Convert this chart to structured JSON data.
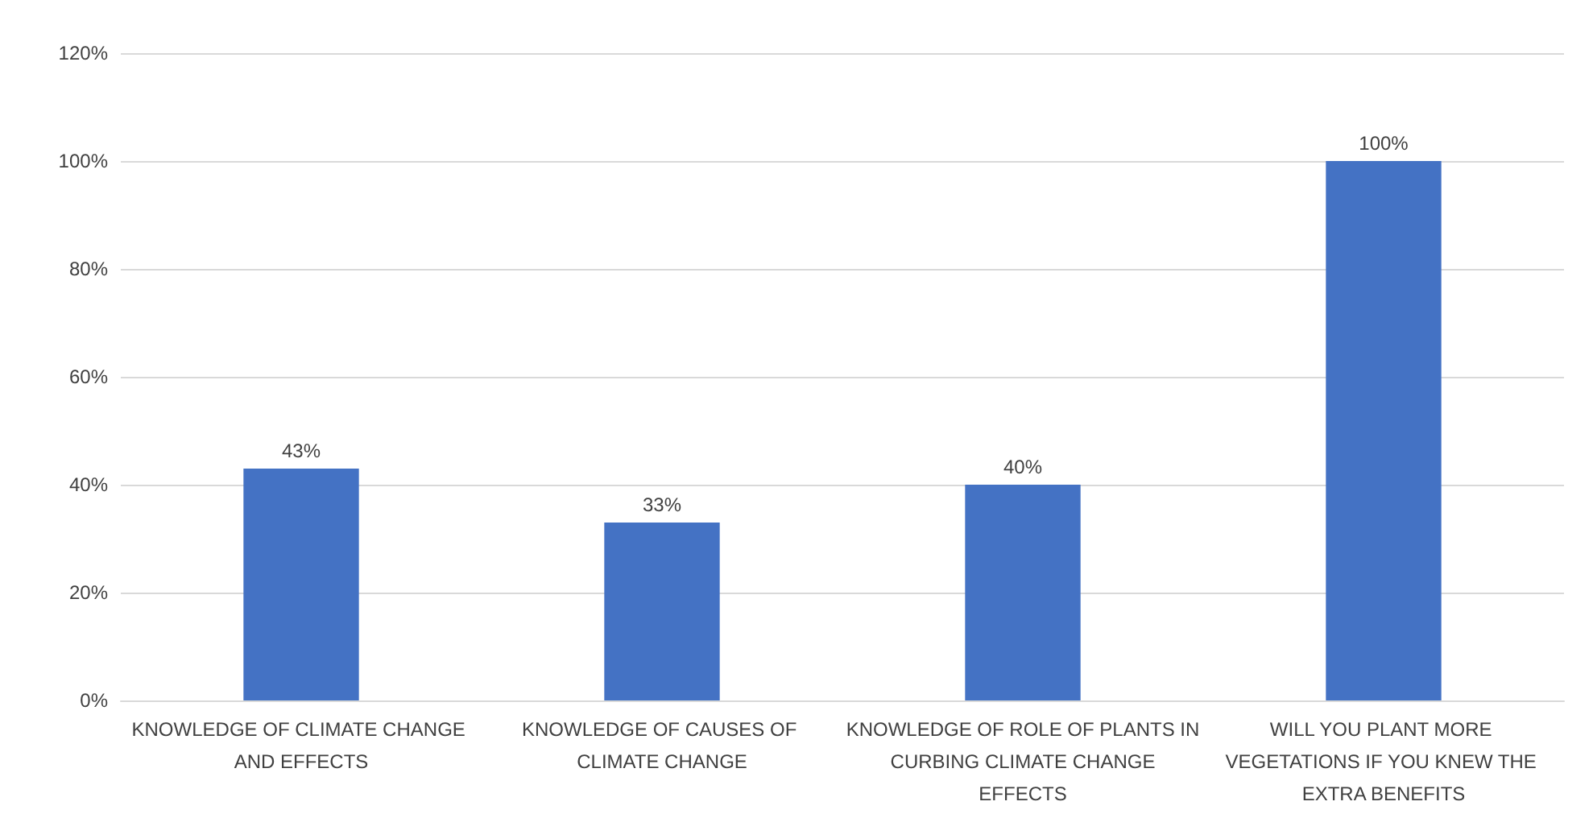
{
  "chart_data": {
    "type": "bar",
    "categories": [
      "KNOWLEDGE OF CLIMATE CHANGE AND EFFECTS",
      "KNOWLEDGE OF CAUSES OF CLIMATE CHANGE",
      "KNOWLEDGE OF ROLE OF PLANTS IN CURBING CLIMATE CHANGE EFFECTS",
      "WILL YOU PLANT MORE VEGETATIONS IF YOU KNEW THE EXTRA BENEFITS"
    ],
    "values": [
      43,
      33,
      40,
      100
    ],
    "value_labels": [
      "43%",
      "33%",
      "40%",
      "100%"
    ],
    "color": "#4472c4",
    "ylim": [
      0,
      120
    ],
    "yticks": [
      {
        "value": 0,
        "label": "0%"
      },
      {
        "value": 20,
        "label": "20%"
      },
      {
        "value": 40,
        "label": "40%"
      },
      {
        "value": 60,
        "label": "60%"
      },
      {
        "value": 80,
        "label": "80%"
      },
      {
        "value": 100,
        "label": "100%"
      },
      {
        "value": 120,
        "label": "120%"
      }
    ],
    "grid": "y"
  }
}
